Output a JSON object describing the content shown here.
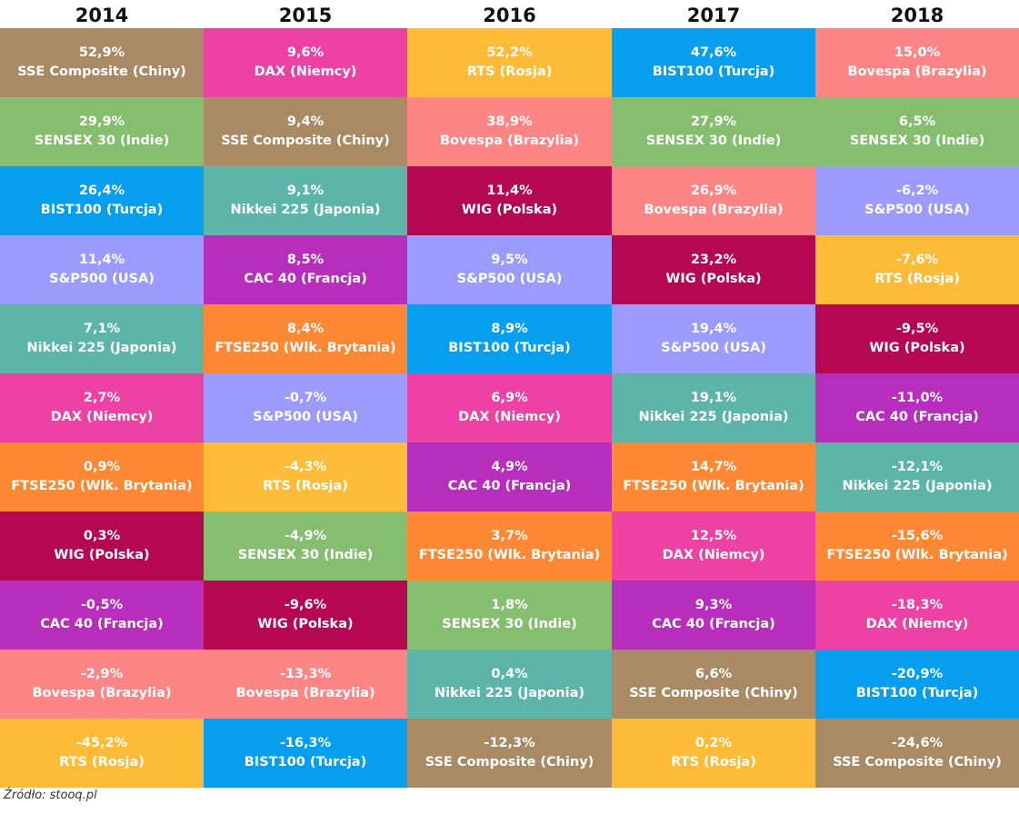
{
  "source": "Źródło: stooq.pl",
  "colors": {
    "SSE Composite (Chiny)": "#a88b65",
    "DAX (Niemcy)": "#ee41a4",
    "RTS (Rosja)": "#fdbb38",
    "BIST100 (Turcja)": "#069ff0",
    "Bovespa (Brazylia)": "#fe8585",
    "SENSEX 30 (Indie)": "#84be6e",
    "Nikkei 225 (Japonia)": "#5db4a9",
    "WIG (Polska)": "#b60752",
    "S&P500 (USA)": "#9b9afd",
    "CAC 40 (Francja)": "#b72ebd",
    "FTSE250 (Wlk. Brytania)": "#fe8834"
  },
  "chart_data": {
    "type": "table",
    "columns": [
      {
        "year": "2014",
        "cells": [
          {
            "value": "52,9%",
            "index": "SSE Composite (Chiny)"
          },
          {
            "value": "29,9%",
            "index": "SENSEX 30 (Indie)"
          },
          {
            "value": "26,4%",
            "index": "BIST100 (Turcja)"
          },
          {
            "value": "11,4%",
            "index": "S&P500 (USA)"
          },
          {
            "value": "7,1%",
            "index": "Nikkei 225 (Japonia)"
          },
          {
            "value": "2,7%",
            "index": "DAX (Niemcy)"
          },
          {
            "value": "0,9%",
            "index": "FTSE250 (Wlk. Brytania)"
          },
          {
            "value": "0,3%",
            "index": "WIG (Polska)"
          },
          {
            "value": "-0,5%",
            "index": "CAC 40 (Francja)"
          },
          {
            "value": "-2,9%",
            "index": "Bovespa (Brazylia)"
          },
          {
            "value": "-45,2%",
            "index": "RTS (Rosja)"
          }
        ]
      },
      {
        "year": "2015",
        "cells": [
          {
            "value": "9,6%",
            "index": "DAX (Niemcy)"
          },
          {
            "value": "9,4%",
            "index": "SSE Composite (Chiny)"
          },
          {
            "value": "9,1%",
            "index": "Nikkei 225 (Japonia)"
          },
          {
            "value": "8,5%",
            "index": "CAC 40 (Francja)"
          },
          {
            "value": "8,4%",
            "index": "FTSE250 (Wlk. Brytania)"
          },
          {
            "value": "-0,7%",
            "index": "S&P500 (USA)"
          },
          {
            "value": "-4,3%",
            "index": "RTS (Rosja)"
          },
          {
            "value": "-4,9%",
            "index": "SENSEX 30 (Indie)"
          },
          {
            "value": "-9,6%",
            "index": "WIG (Polska)"
          },
          {
            "value": "-13,3%",
            "index": "Bovespa (Brazylia)"
          },
          {
            "value": "-16,3%",
            "index": "BIST100 (Turcja)"
          }
        ]
      },
      {
        "year": "2016",
        "cells": [
          {
            "value": "52,2%",
            "index": "RTS (Rosja)"
          },
          {
            "value": "38,9%",
            "index": "Bovespa (Brazylia)"
          },
          {
            "value": "11,4%",
            "index": "WIG (Polska)"
          },
          {
            "value": "9,5%",
            "index": "S&P500 (USA)"
          },
          {
            "value": "8,9%",
            "index": "BIST100 (Turcja)"
          },
          {
            "value": "6,9%",
            "index": "DAX (Niemcy)"
          },
          {
            "value": "4,9%",
            "index": "CAC 40 (Francja)"
          },
          {
            "value": "3,7%",
            "index": "FTSE250 (Wlk. Brytania)"
          },
          {
            "value": "1,8%",
            "index": "SENSEX 30 (Indie)"
          },
          {
            "value": "0,4%",
            "index": "Nikkei 225 (Japonia)"
          },
          {
            "value": "-12,3%",
            "index": "SSE Composite (Chiny)"
          }
        ]
      },
      {
        "year": "2017",
        "cells": [
          {
            "value": "47,6%",
            "index": "BIST100 (Turcja)"
          },
          {
            "value": "27,9%",
            "index": "SENSEX 30 (Indie)"
          },
          {
            "value": "26,9%",
            "index": "Bovespa (Brazylia)"
          },
          {
            "value": "23,2%",
            "index": "WIG (Polska)"
          },
          {
            "value": "19,4%",
            "index": "S&P500 (USA)"
          },
          {
            "value": "19,1%",
            "index": "Nikkei 225 (Japonia)"
          },
          {
            "value": "14,7%",
            "index": "FTSE250 (Wlk. Brytania)"
          },
          {
            "value": "12,5%",
            "index": "DAX (Niemcy)"
          },
          {
            "value": "9,3%",
            "index": "CAC 40 (Francja)"
          },
          {
            "value": "6,6%",
            "index": "SSE Composite (Chiny)"
          },
          {
            "value": "0,2%",
            "index": "RTS (Rosja)"
          }
        ]
      },
      {
        "year": "2018",
        "cells": [
          {
            "value": "15,0%",
            "index": "Bovespa (Brazylia)"
          },
          {
            "value": "6,5%",
            "index": "SENSEX 30 (Indie)"
          },
          {
            "value": "-6,2%",
            "index": "S&P500 (USA)"
          },
          {
            "value": "-7,6%",
            "index": "RTS (Rosja)"
          },
          {
            "value": "-9,5%",
            "index": "WIG (Polska)"
          },
          {
            "value": "-11,0%",
            "index": "CAC 40 (Francja)"
          },
          {
            "value": "-12,1%",
            "index": "Nikkei 225 (Japonia)"
          },
          {
            "value": "-15,6%",
            "index": "FTSE250 (Wlk. Brytania)"
          },
          {
            "value": "-18,3%",
            "index": "DAX (Niemcy)"
          },
          {
            "value": "-20,9%",
            "index": "BIST100 (Turcja)"
          },
          {
            "value": "-24,6%",
            "index": "SSE Composite (Chiny)"
          }
        ]
      }
    ]
  }
}
